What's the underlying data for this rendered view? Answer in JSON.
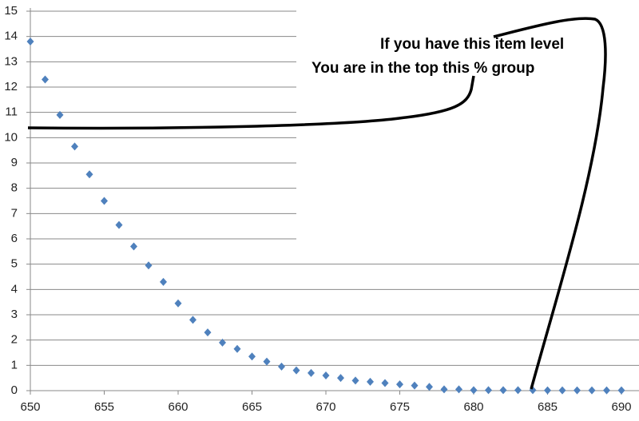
{
  "chart_data": {
    "type": "scatter",
    "x": [
      650,
      651,
      652,
      653,
      654,
      655,
      656,
      657,
      658,
      659,
      660,
      661,
      662,
      663,
      664,
      665,
      666,
      667,
      668,
      669,
      670,
      671,
      672,
      673,
      674,
      675,
      676,
      677,
      678,
      679,
      680,
      681,
      682,
      683,
      684,
      685,
      686,
      687,
      688,
      689,
      690
    ],
    "values": [
      13.8,
      12.3,
      10.9,
      9.65,
      8.55,
      7.5,
      6.55,
      5.7,
      4.95,
      4.3,
      3.45,
      2.8,
      2.3,
      1.9,
      1.65,
      1.35,
      1.15,
      0.95,
      0.8,
      0.7,
      0.6,
      0.5,
      0.4,
      0.35,
      0.3,
      0.25,
      0.2,
      0.15,
      0.05,
      0.05,
      0.02,
      0.02,
      0.02,
      0.02,
      0.02,
      0.01,
      0.01,
      0.01,
      0.01,
      0.01,
      0.01
    ],
    "color": "#4f81bd",
    "xlim": [
      650,
      690
    ],
    "ylim": [
      0,
      15
    ],
    "xticks": [
      650,
      655,
      660,
      665,
      670,
      675,
      680,
      685,
      690
    ],
    "yticks": [
      0,
      1,
      2,
      3,
      4,
      5,
      6,
      7,
      8,
      9,
      10,
      11,
      12,
      13,
      14,
      15
    ],
    "grid": true,
    "annotations": [
      "If you have this item level",
      "You are in the top this % group"
    ]
  }
}
